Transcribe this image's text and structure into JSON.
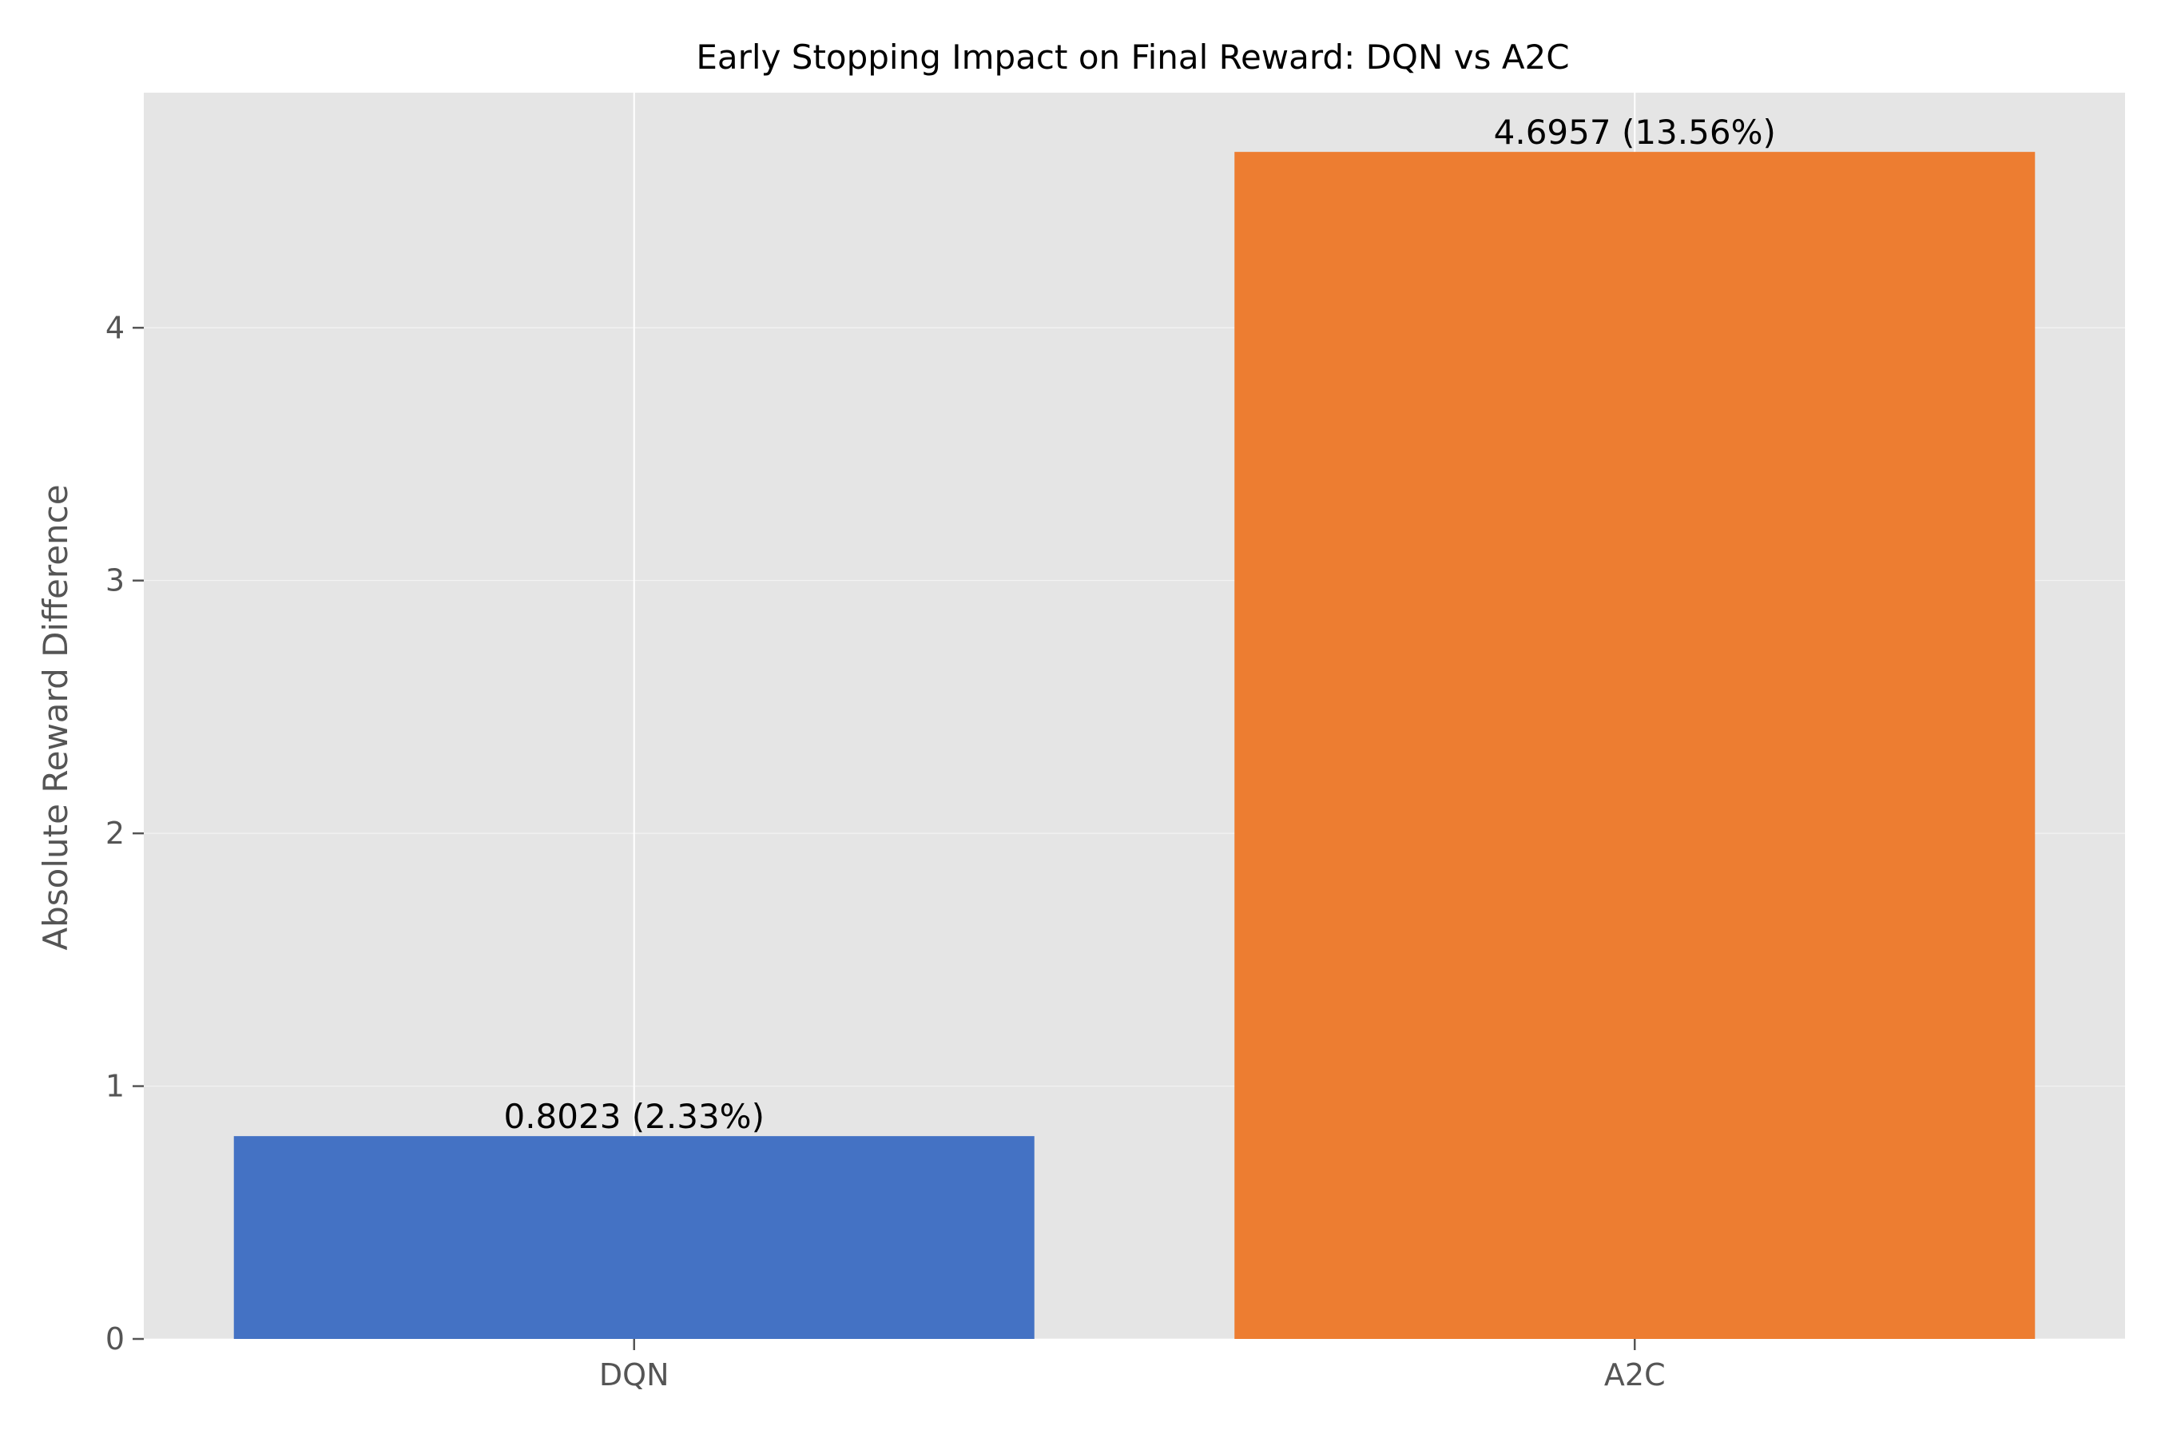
{
  "chart_data": {
    "type": "bar",
    "title": "Early Stopping Impact on Final Reward: DQN vs A2C",
    "xlabel": "",
    "ylabel": "Absolute Reward Difference",
    "categories": [
      "DQN",
      "A2C"
    ],
    "values": [
      0.8023,
      4.6957
    ],
    "data_labels": [
      "0.8023 (2.33%)",
      "4.6957 (13.56%)"
    ],
    "colors": [
      "#4472C4",
      "#ED7D31"
    ],
    "ylim": [
      0,
      4.93
    ],
    "yticks": [
      0,
      1,
      2,
      3,
      4
    ],
    "ytick_labels": [
      "0",
      "1",
      "2",
      "3",
      "4"
    ],
    "grid": true,
    "background_color": "#E5E5E5",
    "grid_color": "#FFFFFF"
  }
}
